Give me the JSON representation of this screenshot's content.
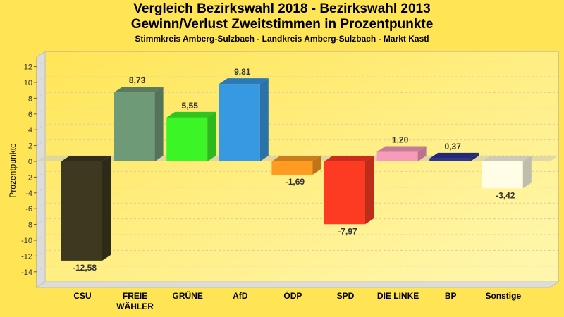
{
  "chart_data": {
    "type": "bar",
    "title": "Vergleich Bezirkswahl 2018 - Bezirkswahl 2013",
    "title2": "Gewinn/Verlust Zweitstimmen in Prozentpunkte",
    "subtitle": "Stimmkreis Amberg-Sulzbach - Landkreis Amberg-Sulzbach - Markt Kastl",
    "xlabel": "",
    "ylabel": "Prozentpunkte",
    "ylim": [
      -14,
      12
    ],
    "yticks": [
      12,
      10,
      8,
      6,
      4,
      2,
      0,
      -2,
      -4,
      -6,
      -8,
      -10,
      -12,
      -14
    ],
    "grid": true,
    "categories": [
      [
        "CSU"
      ],
      [
        "FREIE",
        "WÄHLER"
      ],
      [
        "GRÜNE"
      ],
      [
        "AfD"
      ],
      [
        "ÖDP"
      ],
      [
        "SPD"
      ],
      [
        "DIE LINKE"
      ],
      [
        "BP"
      ],
      [
        "Sonstige"
      ]
    ],
    "values": [
      -12.58,
      8.73,
      5.55,
      9.81,
      -1.69,
      -7.97,
      1.2,
      0.37,
      -3.42
    ],
    "value_labels": [
      "-12,58",
      "8,73",
      "5,55",
      "9,81",
      "-1,69",
      "-7,97",
      "1,20",
      "0,37",
      "-3,42"
    ],
    "colors": [
      "#3d3820",
      "#6f9a78",
      "#3cf526",
      "#3799e2",
      "#fd9c20",
      "#fd3a22",
      "#f79bbb",
      "#2e3392",
      "#fffde6"
    ]
  }
}
